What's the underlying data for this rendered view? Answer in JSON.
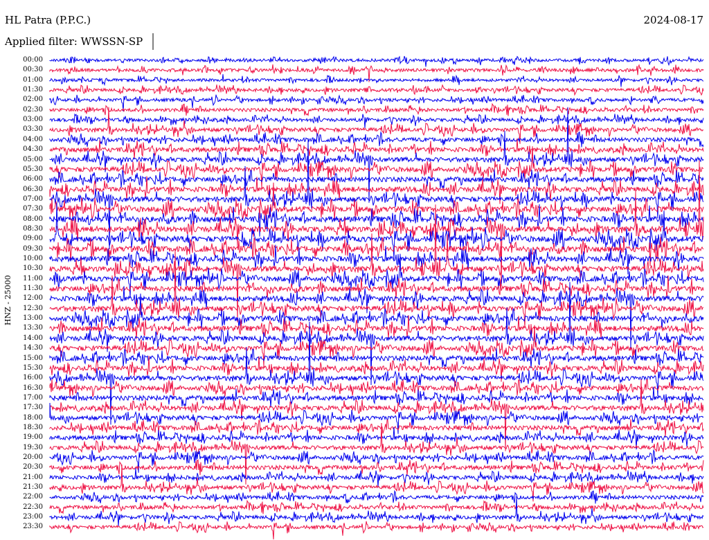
{
  "header": {
    "station": "HL Patra (P.P.C.)",
    "date": "2024-08-17",
    "filter": "Applied filter: WWSSN-SP"
  },
  "chart_data": {
    "type": "line",
    "title": "HL Patra (P.P.C.)",
    "subtitle": "Applied filter: WWSSN-SP",
    "ylabel": "HNZ - 25000",
    "trace_labels": [
      "00:00",
      "00:30",
      "01:00",
      "01:30",
      "02:00",
      "02:30",
      "03:00",
      "03:30",
      "04:00",
      "04:30",
      "05:00",
      "05:30",
      "06:00",
      "06:30",
      "07:00",
      "07:30",
      "08:00",
      "08:30",
      "09:00",
      "09:30",
      "10:00",
      "10:30",
      "11:00",
      "11:30",
      "12:00",
      "12:30",
      "13:00",
      "13:30",
      "14:00",
      "14:30",
      "15:00",
      "15:30",
      "16:00",
      "16:30",
      "17:00",
      "17:30",
      "18:00",
      "18:30",
      "19:00",
      "19:30",
      "20:00",
      "20:30",
      "21:00",
      "21:30",
      "22:00",
      "22:30",
      "23:00",
      "23:30"
    ],
    "series_colors": [
      "#0000ee",
      "#ee1144"
    ],
    "relative_activity": [
      0.25,
      0.3,
      0.25,
      0.3,
      0.3,
      0.35,
      0.35,
      0.45,
      0.5,
      0.6,
      0.6,
      0.65,
      0.65,
      0.7,
      0.7,
      0.75,
      0.8,
      0.8,
      0.8,
      0.8,
      0.75,
      0.75,
      0.7,
      0.7,
      0.7,
      0.7,
      0.7,
      0.7,
      0.65,
      0.65,
      0.65,
      0.65,
      0.65,
      0.6,
      0.6,
      0.6,
      0.55,
      0.55,
      0.55,
      0.5,
      0.5,
      0.5,
      0.45,
      0.45,
      0.4,
      0.4,
      0.4,
      0.35
    ],
    "grid": false
  }
}
